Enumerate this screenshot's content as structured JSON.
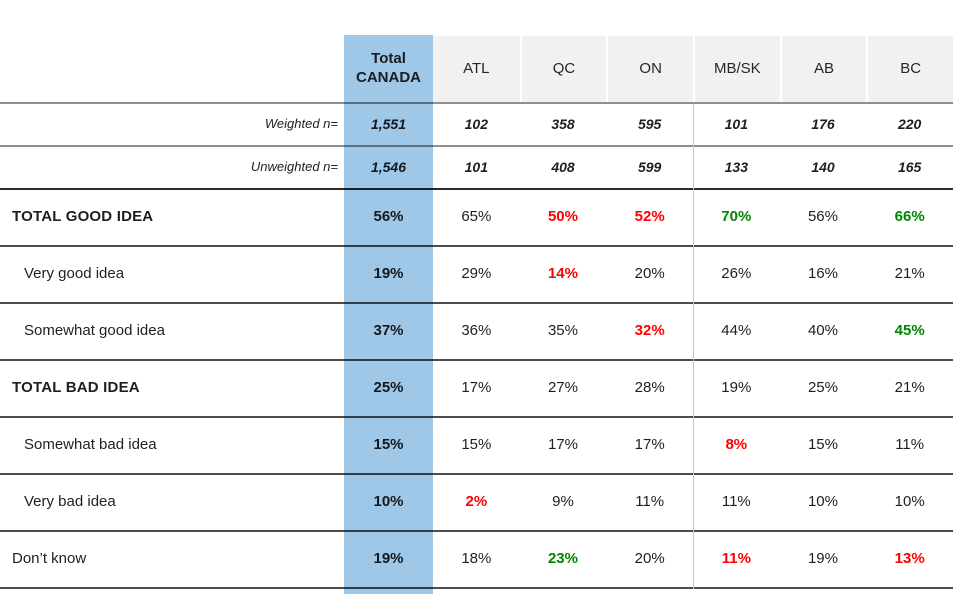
{
  "styles": {
    "highlight_blue": "#9EC7E8",
    "negative_red": "#FF0000",
    "positive_green": "#008500",
    "header_gray": "#F1F1F1",
    "text_black": "#1f1f1f"
  },
  "chart_data": {
    "type": "table",
    "title": "",
    "columns": [
      "Total\nCANADA",
      "ATL",
      "QC",
      "ON",
      "MB/SK",
      "AB",
      "BC"
    ],
    "base_rows": [
      {
        "label": "Weighted n=",
        "values": [
          "1,551",
          "102",
          "358",
          "595",
          "101",
          "176",
          "220"
        ]
      },
      {
        "label": "Unweighted n=",
        "values": [
          "1,546",
          "101",
          "408",
          "599",
          "133",
          "140",
          "165"
        ]
      }
    ],
    "rows": [
      {
        "label": "TOTAL GOOD IDEA",
        "bold": true,
        "indent": false,
        "values": [
          "56%",
          "65%",
          "50%",
          "52%",
          "70%",
          "56%",
          "66%"
        ],
        "colors": [
          "black",
          "black",
          "red",
          "red",
          "green",
          "black",
          "green"
        ]
      },
      {
        "label": "Very good idea",
        "bold": false,
        "indent": true,
        "values": [
          "19%",
          "29%",
          "14%",
          "20%",
          "26%",
          "16%",
          "21%"
        ],
        "colors": [
          "black",
          "black",
          "red",
          "black",
          "black",
          "black",
          "black"
        ]
      },
      {
        "label": "Somewhat good idea",
        "bold": false,
        "indent": true,
        "values": [
          "37%",
          "36%",
          "35%",
          "32%",
          "44%",
          "40%",
          "45%"
        ],
        "colors": [
          "black",
          "black",
          "black",
          "red",
          "black",
          "black",
          "green"
        ]
      },
      {
        "label": "TOTAL BAD IDEA",
        "bold": true,
        "indent": false,
        "values": [
          "25%",
          "17%",
          "27%",
          "28%",
          "19%",
          "25%",
          "21%"
        ],
        "colors": [
          "black",
          "black",
          "black",
          "black",
          "black",
          "black",
          "black"
        ]
      },
      {
        "label": "Somewhat bad idea",
        "bold": false,
        "indent": true,
        "values": [
          "15%",
          "15%",
          "17%",
          "17%",
          "8%",
          "15%",
          "11%"
        ],
        "colors": [
          "black",
          "black",
          "black",
          "black",
          "red",
          "black",
          "black"
        ]
      },
      {
        "label": "Very bad idea",
        "bold": false,
        "indent": true,
        "values": [
          "10%",
          "2%",
          "9%",
          "11%",
          "11%",
          "10%",
          "10%"
        ],
        "colors": [
          "black",
          "red",
          "black",
          "black",
          "black",
          "black",
          "black"
        ]
      },
      {
        "label": "Don’t know",
        "bold": false,
        "indent": false,
        "values": [
          "19%",
          "18%",
          "23%",
          "20%",
          "11%",
          "19%",
          "13%"
        ],
        "colors": [
          "black",
          "black",
          "green",
          "black",
          "red",
          "black",
          "red"
        ]
      }
    ]
  }
}
